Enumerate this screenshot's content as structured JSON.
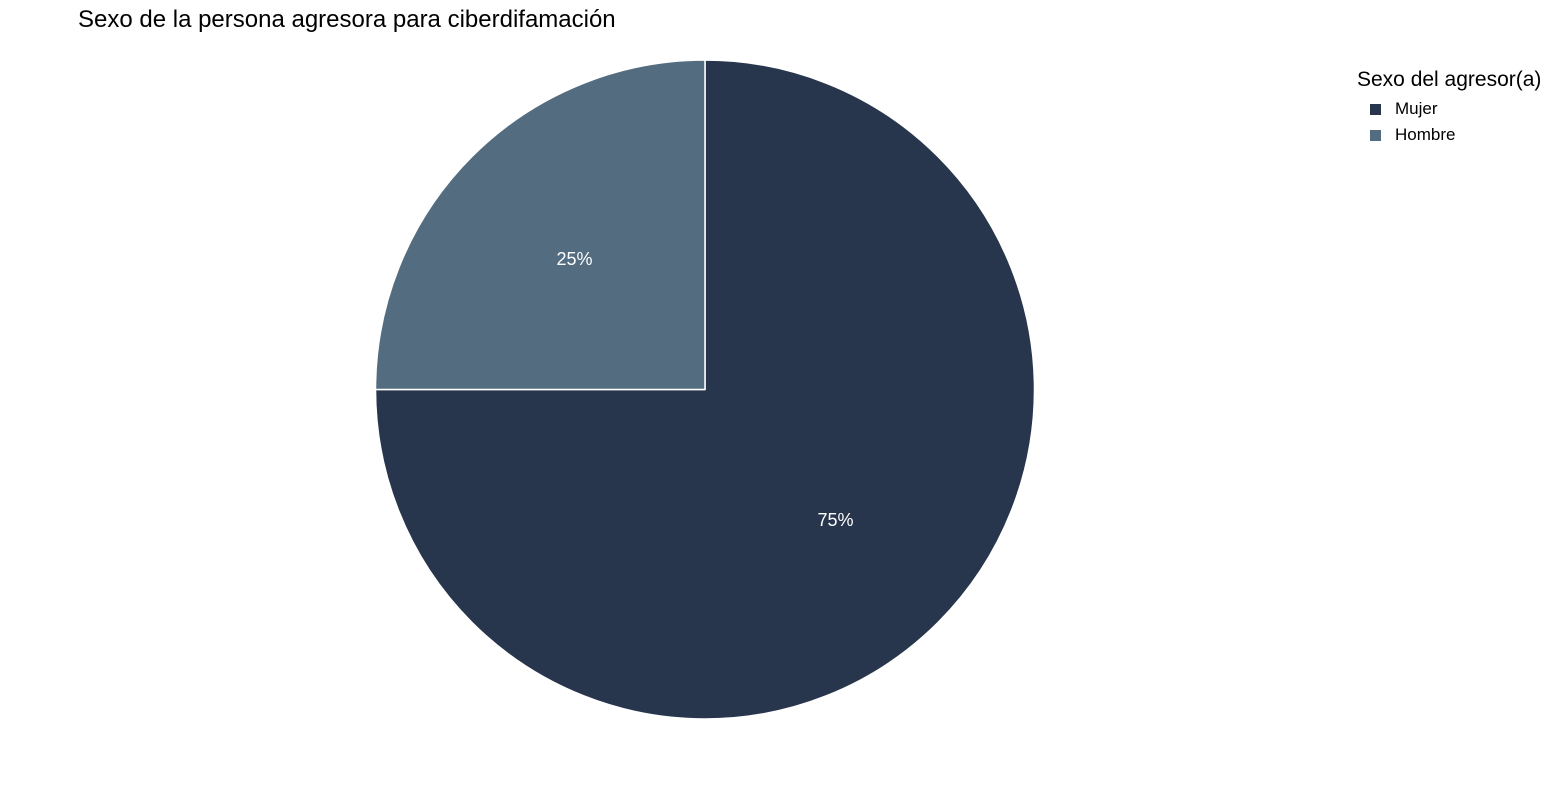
{
  "chart_data": {
    "type": "pie",
    "title": "Sexo de la persona agresora para ciberdifamación",
    "legend_title": "Sexo del agresor(a)",
    "legend_position": "top-right",
    "slices": [
      {
        "name": "Mujer",
        "value": 75,
        "label": "75%",
        "color": "#27364D"
      },
      {
        "name": "Hombre",
        "value": 25,
        "label": "25%",
        "color": "#536C80"
      }
    ]
  }
}
